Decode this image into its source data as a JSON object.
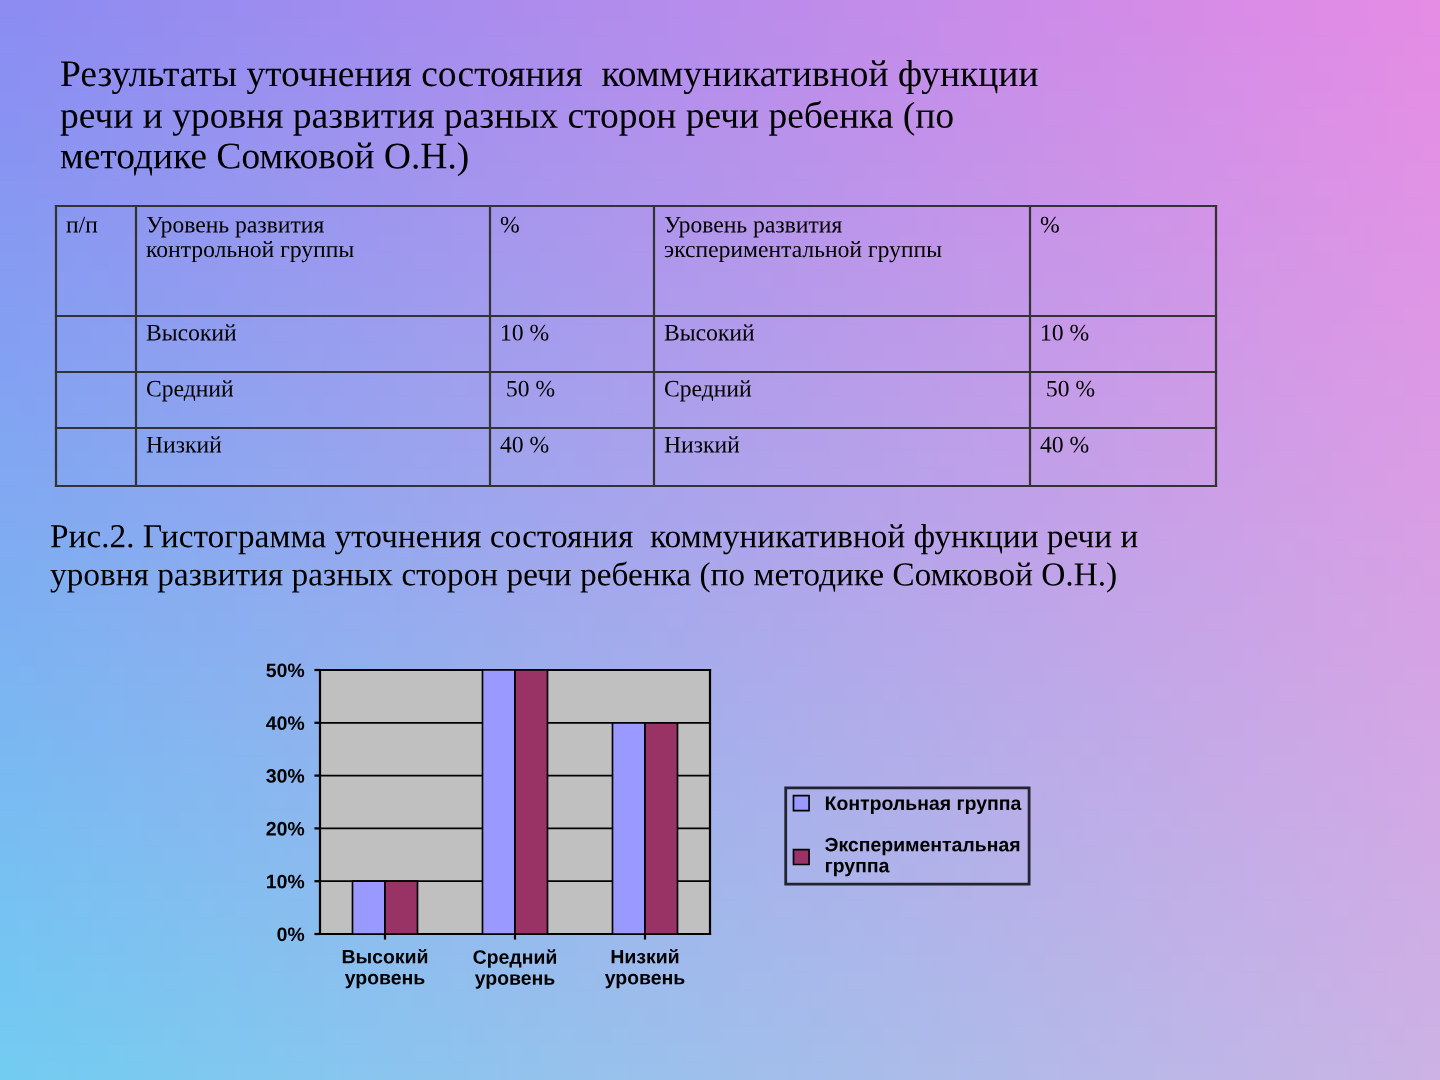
{
  "chart_data": {
    "type": "bar",
    "title": "Результаты уточнения состояния  коммуникативной функции\nречи и уровня развития разных сторон речи ребенка (по\nметодике Сомковой О.Н.)",
    "subtitle": "Рис.2. Гистограмма уточнения состояния  коммуникативной функции речи и\nуровня развития разных сторон речи ребенка (по методике Сомковой О.Н.)",
    "annotations": [
      "п/п",
      "Уровень развития\nконтрольной группы",
      "%",
      "Уровень развития\nэкспериментальной группы",
      "%",
      "Высокий",
      "10 %",
      "Высокий",
      "10 %",
      "Средний",
      " 50 %",
      "Средний",
      " 50 %",
      "Низкий",
      "40 %",
      "Низкий",
      "40 %"
    ],
    "categories": [
      "Высокий\nуровень",
      "Средний\nуровень",
      "Низкий\nуровень"
    ],
    "series": [
      {
        "name": "Контрольная группа",
        "color": "#9999ff",
        "values": [
          10,
          50,
          40
        ]
      },
      {
        "name": "Экспериментальная\nгруппа",
        "color": "#993366",
        "values": [
          10,
          50,
          40
        ]
      }
    ],
    "ylim": [
      0,
      50
    ],
    "yticks": [
      {
        "value": 0,
        "label": "0%"
      },
      {
        "value": 10,
        "label": "10%"
      },
      {
        "value": 20,
        "label": "20%"
      },
      {
        "value": 30,
        "label": "30%"
      },
      {
        "value": 40,
        "label": "40%"
      },
      {
        "value": 50,
        "label": "50%"
      }
    ],
    "grid": "y",
    "legend": "right"
  }
}
